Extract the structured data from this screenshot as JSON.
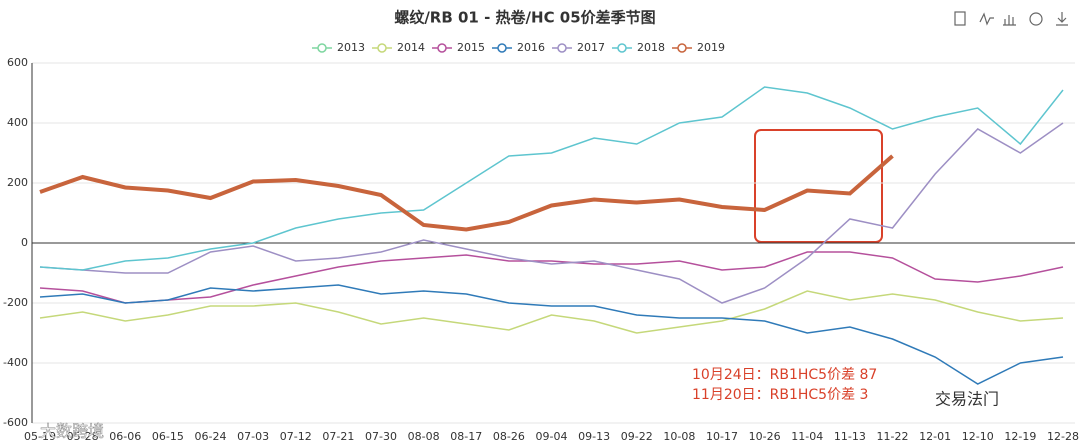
{
  "chart_data": {
    "type": "line",
    "title": "螺纹/RB 01 - 热卷/HC 05价差季节图",
    "categories": [
      "05-19",
      "05-28",
      "06-06",
      "06-15",
      "06-24",
      "07-03",
      "07-12",
      "07-21",
      "07-30",
      "08-08",
      "08-17",
      "08-26",
      "09-04",
      "09-13",
      "09-22",
      "10-08",
      "10-17",
      "10-26",
      "11-04",
      "11-13",
      "11-22",
      "12-01",
      "12-10",
      "12-19",
      "12-28"
    ],
    "series": [
      {
        "name": "2013",
        "color": "#7ed6a0",
        "values": [
          null,
          null,
          null,
          null,
          null,
          null,
          null,
          null,
          null,
          null,
          null,
          null,
          null,
          null,
          null,
          null,
          null,
          null,
          null,
          null,
          null,
          null,
          null,
          null,
          null
        ]
      },
      {
        "name": "2014",
        "color": "#c5d87a",
        "values": [
          -250,
          -230,
          -260,
          -240,
          -210,
          -210,
          -200,
          -230,
          -270,
          -250,
          -270,
          -290,
          -240,
          -260,
          -300,
          -280,
          -260,
          -220,
          -160,
          -190,
          -170,
          -190,
          -230,
          -260,
          -250
        ]
      },
      {
        "name": "2015",
        "color": "#b5509c",
        "values": [
          -150,
          -160,
          -200,
          -190,
          -180,
          -140,
          -110,
          -80,
          -60,
          -50,
          -40,
          -60,
          -60,
          -70,
          -70,
          -60,
          -90,
          -80,
          -30,
          -30,
          -50,
          -120,
          -130,
          -110,
          -80
        ]
      },
      {
        "name": "2016",
        "color": "#2f7ab8",
        "values": [
          -180,
          -170,
          -200,
          -190,
          -150,
          -160,
          -150,
          -140,
          -170,
          -160,
          -170,
          -200,
          -210,
          -210,
          -240,
          -250,
          -250,
          -260,
          -300,
          -280,
          -320,
          -380,
          -470,
          -400,
          -380
        ]
      },
      {
        "name": "2017",
        "color": "#9d8fc4",
        "values": [
          -80,
          -90,
          -100,
          -100,
          -30,
          -10,
          -60,
          -50,
          -30,
          10,
          -20,
          -50,
          -70,
          -60,
          -90,
          -120,
          -200,
          -150,
          -50,
          80,
          50,
          230,
          380,
          300,
          400
        ]
      },
      {
        "name": "2018",
        "color": "#5ec5cf",
        "values": [
          -80,
          -90,
          -60,
          -50,
          -20,
          0,
          50,
          80,
          100,
          110,
          200,
          290,
          300,
          350,
          330,
          400,
          420,
          520,
          500,
          450,
          380,
          420,
          450,
          330,
          510
        ]
      },
      {
        "name": "2019",
        "color": "#c8643c",
        "values": [
          170,
          220,
          185,
          175,
          150,
          205,
          210,
          190,
          160,
          60,
          45,
          70,
          125,
          145,
          135,
          145,
          120,
          110,
          175,
          165,
          290,
          null,
          null,
          null,
          null
        ]
      }
    ],
    "ylim": [
      -600,
      600
    ],
    "yticks": [
      -600,
      -400,
      -200,
      0,
      200,
      400,
      600
    ],
    "grid": true,
    "annotations": [
      "10月24日：RB1HC5价差 87",
      "11月20日：RB1HC5价差 3"
    ],
    "watermarks": [
      "交易法门",
      "大数跨境"
    ]
  }
}
